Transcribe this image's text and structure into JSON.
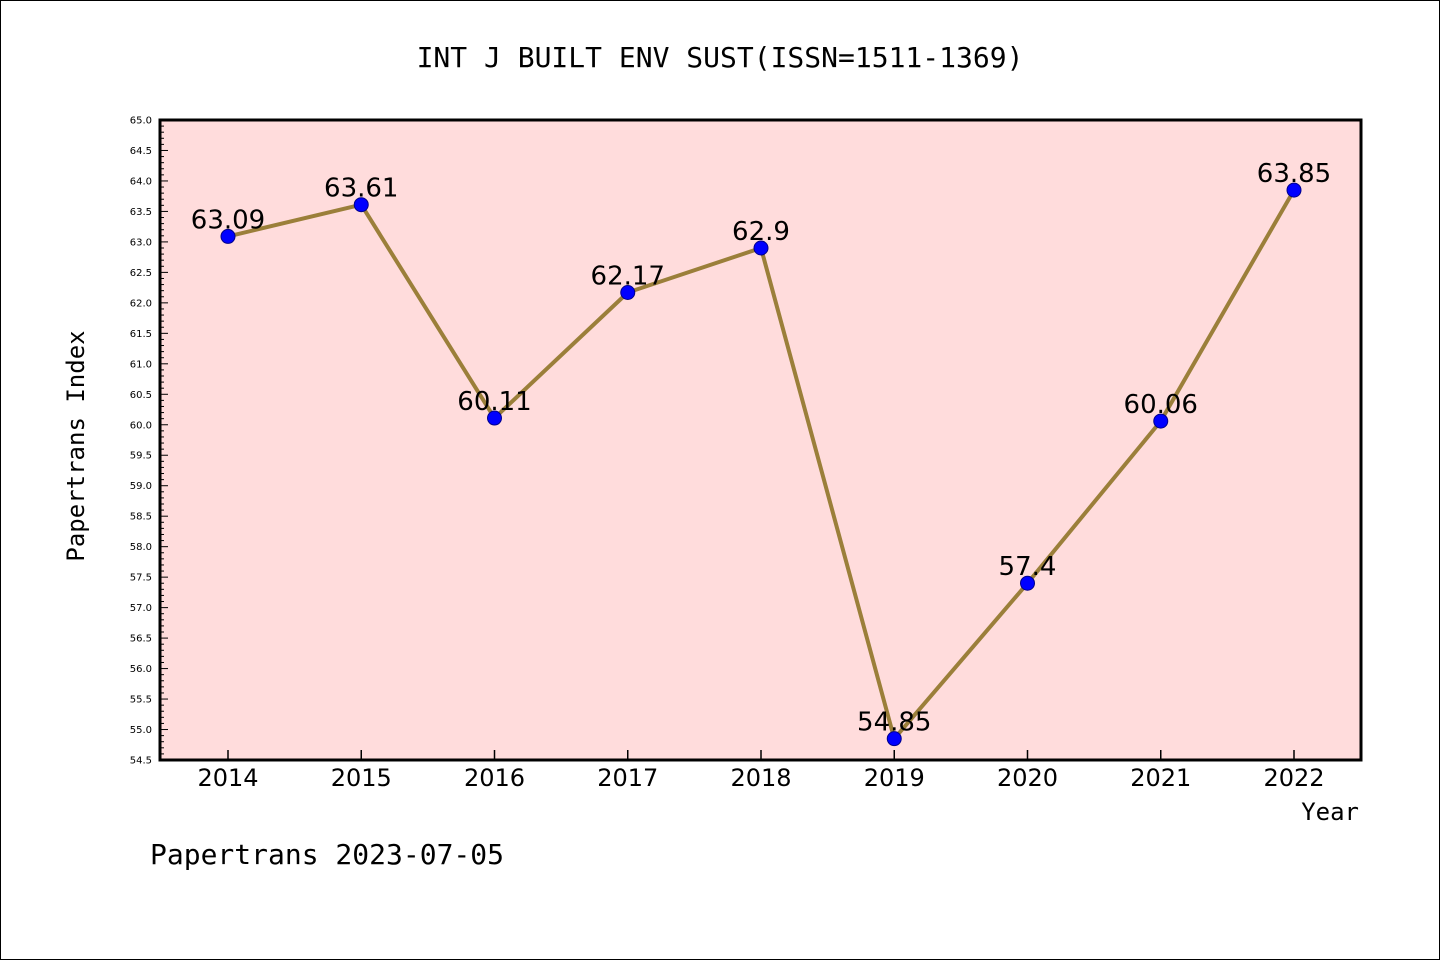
{
  "chart_data": {
    "type": "line",
    "title": "INT J BUILT ENV SUST(ISSN=1511-1369)",
    "xlabel": "Year",
    "ylabel": "Papertrans Index",
    "categories": [
      "2014",
      "2015",
      "2016",
      "2017",
      "2018",
      "2019",
      "2020",
      "2021",
      "2022"
    ],
    "series": [
      {
        "values": [
          63.09,
          63.61,
          60.11,
          62.17,
          62.9,
          54.85,
          57.4,
          60.06,
          63.85
        ],
        "labels": [
          "63.09",
          "63.61",
          "60.11",
          "62.17",
          "62.9",
          "54.85",
          "57.4",
          "60.06",
          "63.85"
        ]
      }
    ],
    "ylim": [
      54.5,
      65.0
    ],
    "ytick_step": 0.5,
    "grid": false,
    "colors": {
      "plot_background": "#ffdcdc",
      "line": "#9b7f3a",
      "marker": "#0000ff"
    }
  },
  "footer": "Papertrans 2023-07-05"
}
